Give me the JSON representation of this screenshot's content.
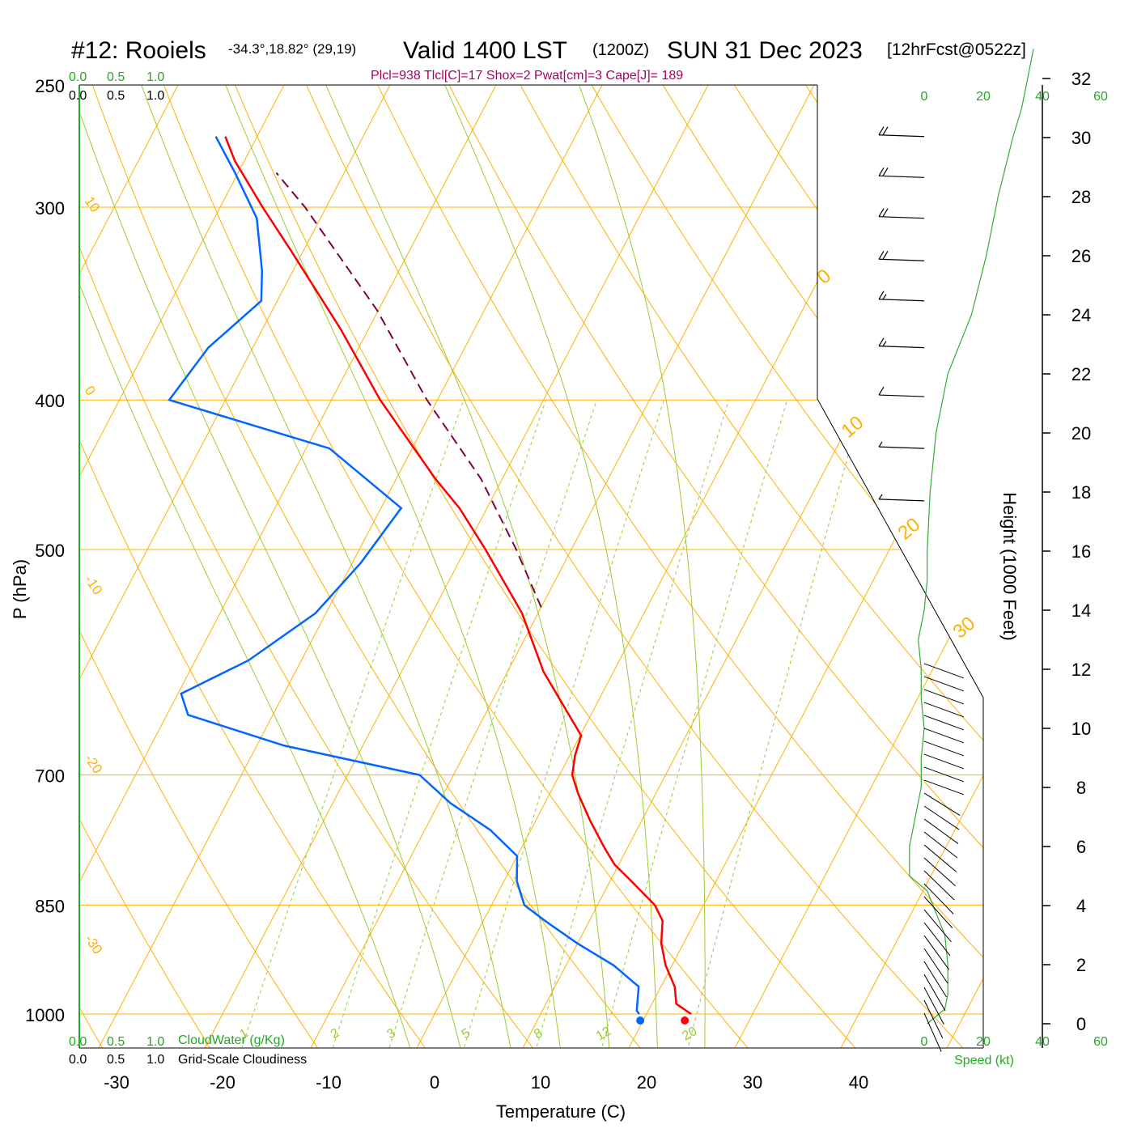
{
  "header": {
    "station": "#12: Rooiels",
    "coords": "-34.3°,18.82° (29,19)",
    "valid": "Valid 1400 LST",
    "utc": "(1200Z)",
    "date": "SUN 31 Dec 2023",
    "forecast": "[12hrFcst@0522z]",
    "indices": "Plcl=938 Tlcl[C]=17 Shox=2 Pwat[cm]=3 Cape[J]= 189"
  },
  "colors": {
    "temperature": "#ff0000",
    "dewpoint": "#0066ff",
    "parcel": "#800040",
    "isobar": "#ffb000",
    "dry_adiabat": "#ffb000",
    "moist_adiabat": "#99cc33",
    "mixing_ratio": "#99cc33",
    "cloud_scale": "#22aa22",
    "wind_speed": "#33aa33",
    "indices_text": "#aa0066"
  },
  "left_scales": {
    "cloud_water_ticks": [
      "0.0",
      "0.5",
      "1.0"
    ],
    "cloudiness_ticks": [
      "0.0",
      "0.5",
      "1.0"
    ],
    "cloud_water_label": "CloudWater (g/Kg)",
    "cloudiness_label": "Grid-Scale Cloudiness"
  },
  "right_panel": {
    "speed_ticks": [
      "0",
      "20",
      "40",
      "60"
    ],
    "speed_label": "Speed (kt)",
    "height_label": "Height (1000 Feet)",
    "height_ticks": [
      "0",
      "2",
      "4",
      "6",
      "8",
      "10",
      "12",
      "14",
      "16",
      "18",
      "20",
      "22",
      "24",
      "26",
      "28",
      "30",
      "32"
    ]
  },
  "chart_data": {
    "type": "line",
    "subtype": "skew-T log-P sounding",
    "xlabel": "Temperature (C)",
    "ylabel": "P (hPa)",
    "x_ticks": [
      -30,
      -20,
      -10,
      0,
      10,
      20,
      30,
      40
    ],
    "y_ticks": [
      250,
      300,
      400,
      500,
      700,
      850,
      1000
    ],
    "y_scale": "log",
    "dry_adiabat_labels": [
      "10",
      "0",
      "-10",
      "-20",
      "-30",
      "0",
      "10",
      "20",
      "30"
    ],
    "mixing_ratio_labels": [
      "1",
      "2",
      "3",
      "5",
      "8",
      "12",
      "20"
    ],
    "temperature": [
      {
        "p": 1000,
        "t": 24.2
      },
      {
        "p": 985,
        "t": 22.3
      },
      {
        "p": 960,
        "t": 21.3
      },
      {
        "p": 930,
        "t": 19.4
      },
      {
        "p": 900,
        "t": 17.9
      },
      {
        "p": 870,
        "t": 16.9
      },
      {
        "p": 850,
        "t": 15.4
      },
      {
        "p": 820,
        "t": 12.0
      },
      {
        "p": 800,
        "t": 9.6
      },
      {
        "p": 780,
        "t": 7.8
      },
      {
        "p": 750,
        "t": 5.2
      },
      {
        "p": 720,
        "t": 2.7
      },
      {
        "p": 700,
        "t": 1.2
      },
      {
        "p": 680,
        "t": 0.5
      },
      {
        "p": 660,
        "t": 0.1
      },
      {
        "p": 600,
        "t": -6.6
      },
      {
        "p": 550,
        "t": -11.5
      },
      {
        "p": 500,
        "t": -18.1
      },
      {
        "p": 470,
        "t": -22.6
      },
      {
        "p": 450,
        "t": -26.3
      },
      {
        "p": 400,
        "t": -35.4
      },
      {
        "p": 360,
        "t": -42.6
      },
      {
        "p": 320,
        "t": -51.2
      },
      {
        "p": 300,
        "t": -56.0
      },
      {
        "p": 280,
        "t": -60.9
      },
      {
        "p": 270,
        "t": -63.0
      }
    ],
    "dewpoint": [
      {
        "p": 1000,
        "td": 19.3
      },
      {
        "p": 995,
        "td": 18.9
      },
      {
        "p": 960,
        "td": 17.9
      },
      {
        "p": 930,
        "td": 14.5
      },
      {
        "p": 900,
        "td": 10.0
      },
      {
        "p": 870,
        "td": 5.8
      },
      {
        "p": 850,
        "td": 3.1
      },
      {
        "p": 820,
        "td": 1.2
      },
      {
        "p": 790,
        "td": 0.0
      },
      {
        "p": 760,
        "td": -3.8
      },
      {
        "p": 730,
        "td": -8.9
      },
      {
        "p": 700,
        "td": -13.2
      },
      {
        "p": 670,
        "td": -27.4
      },
      {
        "p": 640,
        "td": -38.0
      },
      {
        "p": 620,
        "td": -39.7
      },
      {
        "p": 590,
        "td": -35.0
      },
      {
        "p": 550,
        "td": -31.0
      },
      {
        "p": 510,
        "td": -29.2
      },
      {
        "p": 470,
        "td": -28.1
      },
      {
        "p": 430,
        "td": -37.8
      },
      {
        "p": 400,
        "td": -55.3
      },
      {
        "p": 370,
        "td": -54.2
      },
      {
        "p": 345,
        "td": -51.5
      },
      {
        "p": 330,
        "td": -52.9
      },
      {
        "p": 305,
        "td": -56.0
      },
      {
        "p": 285,
        "td": -60.3
      },
      {
        "p": 270,
        "td": -63.9
      }
    ],
    "parcel": [
      {
        "p": 545,
        "t": -10.0
      },
      {
        "p": 500,
        "t": -15.2
      },
      {
        "p": 450,
        "t": -22.0
      },
      {
        "p": 400,
        "t": -31.0
      },
      {
        "p": 350,
        "t": -40.1
      },
      {
        "p": 300,
        "t": -52.0
      },
      {
        "p": 285,
        "t": -56.4
      }
    ],
    "surface_temperature": 23.6,
    "surface_dewpoint": 19.4,
    "wind_speed_kt": [
      {
        "h_kft": 0.0,
        "kt": 1
      },
      {
        "h_kft": 0.5,
        "kt": 7
      },
      {
        "h_kft": 1.0,
        "kt": 8
      },
      {
        "h_kft": 2.0,
        "kt": 8
      },
      {
        "h_kft": 3.0,
        "kt": 7
      },
      {
        "h_kft": 3.5,
        "kt": 5
      },
      {
        "h_kft": 4.0,
        "kt": 3
      },
      {
        "h_kft": 4.5,
        "kt": 1
      },
      {
        "h_kft": 5.0,
        "kt": -5
      },
      {
        "h_kft": 6.0,
        "kt": -5
      },
      {
        "h_kft": 7.0,
        "kt": -3
      },
      {
        "h_kft": 8.0,
        "kt": -1
      },
      {
        "h_kft": 9.0,
        "kt": -1
      },
      {
        "h_kft": 10.0,
        "kt": 0
      },
      {
        "h_kft": 11.0,
        "kt": -1
      },
      {
        "h_kft": 12.0,
        "kt": -1
      },
      {
        "h_kft": 13.0,
        "kt": -2
      },
      {
        "h_kft": 14.0,
        "kt": 0
      },
      {
        "h_kft": 15.0,
        "kt": 1
      },
      {
        "h_kft": 16.0,
        "kt": 1
      },
      {
        "h_kft": 18.0,
        "kt": 2
      },
      {
        "h_kft": 20.0,
        "kt": 4
      },
      {
        "h_kft": 22.0,
        "kt": 8
      },
      {
        "h_kft": 24.0,
        "kt": 16
      },
      {
        "h_kft": 26.0,
        "kt": 21
      },
      {
        "h_kft": 28.0,
        "kt": 25
      },
      {
        "h_kft": 30.0,
        "kt": 30
      },
      {
        "h_kft": 31.0,
        "kt": 33
      },
      {
        "h_kft": 32.0,
        "kt": 35
      },
      {
        "h_kft": 33.0,
        "kt": 37
      }
    ],
    "wind_barbs_upper": [
      {
        "p": 270,
        "full_barbs": 2,
        "half_barbs": 0
      },
      {
        "p": 287,
        "full_barbs": 2,
        "half_barbs": 0
      },
      {
        "p": 305,
        "full_barbs": 2,
        "half_barbs": 0
      },
      {
        "p": 325,
        "full_barbs": 2,
        "half_barbs": 0
      },
      {
        "p": 345,
        "full_barbs": 1,
        "half_barbs": 1
      },
      {
        "p": 370,
        "full_barbs": 1,
        "half_barbs": 1
      },
      {
        "p": 398,
        "full_barbs": 1,
        "half_barbs": 0
      },
      {
        "p": 430,
        "full_barbs": 0,
        "half_barbs": 1
      },
      {
        "p": 465,
        "full_barbs": 0,
        "half_barbs": 1
      }
    ]
  }
}
